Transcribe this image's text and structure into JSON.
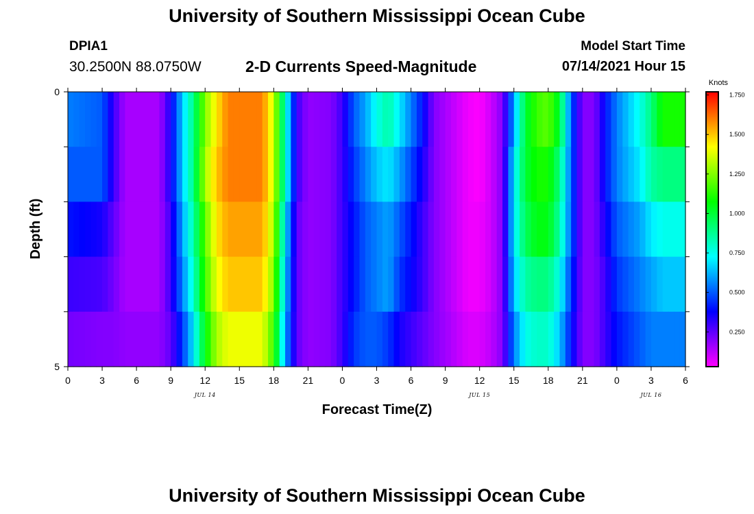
{
  "header": {
    "title": "University of Southern Mississippi Ocean Cube",
    "station_id": "DPIA1",
    "coordinates": "30.2500N  88.0750W",
    "subtitle": "2-D Currents Speed-Magnitude",
    "model_start_label": "Model Start Time",
    "model_start_value": "07/14/2021 Hour 15"
  },
  "footer": {
    "title": "University of Southern Mississippi Ocean Cube"
  },
  "colors": {
    "scale": [
      "#ff00ff",
      "#8000ff",
      "#0000ff",
      "#0080ff",
      "#00ffff",
      "#00ff80",
      "#00ff00",
      "#80ff00",
      "#ffff00",
      "#ff8000",
      "#ff0000"
    ]
  },
  "chart_data": {
    "type": "heatmap",
    "xlabel": "Forecast Time(Z)",
    "ylabel": "Depth (ft)",
    "x_tick_labels": [
      "0",
      "3",
      "6",
      "9",
      "12",
      "15",
      "18",
      "21",
      "0",
      "3",
      "6",
      "9",
      "12",
      "15",
      "18",
      "21",
      "0",
      "3",
      "6"
    ],
    "date_labels": [
      {
        "text": "JUL 14",
        "hour": 12
      },
      {
        "text": "JUL 15",
        "hour": 36
      },
      {
        "text": "JUL 16",
        "hour": 51
      }
    ],
    "y_tick_labels": [
      "0",
      "5"
    ],
    "y_range": [
      0,
      5
    ],
    "x_range": [
      0,
      54
    ],
    "colorbar": {
      "title": "Knots",
      "tick_labels": [
        "1.750",
        "1.500",
        "1.250",
        "1.000",
        "0.750",
        "0.500",
        "0.250"
      ],
      "tick_values": [
        1.75,
        1.5,
        1.25,
        1.0,
        0.75,
        0.5,
        0.25
      ],
      "range": [
        0.03,
        1.77
      ]
    },
    "depth_bins": [
      0,
      1,
      2,
      3,
      4,
      5
    ],
    "depth_layers": [
      {
        "key": [
          [
            0,
            0.55
          ],
          [
            3,
            0.5
          ],
          [
            4,
            0.3
          ],
          [
            5,
            0.15
          ],
          [
            8,
            0.15
          ],
          [
            9,
            0.35
          ],
          [
            10,
            0.65
          ],
          [
            11,
            0.9
          ],
          [
            12,
            1.25
          ],
          [
            13,
            1.45
          ],
          [
            14,
            1.6
          ],
          [
            17,
            1.6
          ],
          [
            18,
            1.35
          ],
          [
            19,
            0.8
          ],
          [
            20,
            0.3
          ],
          [
            21,
            0.18
          ],
          [
            23,
            0.2
          ],
          [
            24,
            0.3
          ],
          [
            25,
            0.5
          ],
          [
            26,
            0.6
          ],
          [
            27,
            0.75
          ],
          [
            28,
            0.85
          ],
          [
            29,
            0.7
          ],
          [
            31,
            0.4
          ],
          [
            32,
            0.2
          ],
          [
            34,
            0.1
          ],
          [
            35,
            0.05
          ],
          [
            36,
            0.03
          ],
          [
            37,
            0.1
          ],
          [
            38,
            0.2
          ],
          [
            39,
            0.6
          ],
          [
            40,
            1.0
          ],
          [
            41,
            1.15
          ],
          [
            42,
            1.2
          ],
          [
            43,
            1.0
          ],
          [
            44,
            0.5
          ],
          [
            45,
            0.2
          ],
          [
            46,
            0.2
          ],
          [
            47,
            0.4
          ],
          [
            48,
            0.55
          ],
          [
            50,
            0.75
          ],
          [
            51,
            0.9
          ],
          [
            52,
            1.1
          ],
          [
            54,
            1.1
          ]
        ]
      },
      {
        "key": [
          [
            0,
            0.5
          ],
          [
            3,
            0.5
          ],
          [
            4,
            0.3
          ],
          [
            5,
            0.15
          ],
          [
            8,
            0.15
          ],
          [
            9,
            0.35
          ],
          [
            10,
            0.65
          ],
          [
            11,
            0.9
          ],
          [
            12,
            1.3
          ],
          [
            13,
            1.5
          ],
          [
            14,
            1.6
          ],
          [
            17,
            1.6
          ],
          [
            18,
            1.35
          ],
          [
            19,
            0.8
          ],
          [
            20,
            0.3
          ],
          [
            21,
            0.18
          ],
          [
            23,
            0.2
          ],
          [
            24,
            0.3
          ],
          [
            25,
            0.45
          ],
          [
            26,
            0.55
          ],
          [
            27,
            0.65
          ],
          [
            28,
            0.7
          ],
          [
            29,
            0.6
          ],
          [
            31,
            0.35
          ],
          [
            32,
            0.2
          ],
          [
            34,
            0.1
          ],
          [
            35,
            0.05
          ],
          [
            36,
            0.03
          ],
          [
            37,
            0.1
          ],
          [
            38,
            0.2
          ],
          [
            39,
            0.7
          ],
          [
            40,
            1.0
          ],
          [
            41,
            1.1
          ],
          [
            42,
            1.1
          ],
          [
            43,
            0.9
          ],
          [
            44,
            0.5
          ],
          [
            45,
            0.2
          ],
          [
            46,
            0.2
          ],
          [
            47,
            0.4
          ],
          [
            48,
            0.55
          ],
          [
            50,
            0.7
          ],
          [
            51,
            0.85
          ],
          [
            52,
            0.9
          ],
          [
            54,
            0.9
          ]
        ]
      },
      {
        "key": [
          [
            0,
            0.4
          ],
          [
            3,
            0.35
          ],
          [
            4,
            0.25
          ],
          [
            5,
            0.15
          ],
          [
            8,
            0.15
          ],
          [
            9,
            0.3
          ],
          [
            10,
            0.6
          ],
          [
            11,
            0.85
          ],
          [
            12,
            1.2
          ],
          [
            13,
            1.45
          ],
          [
            14,
            1.55
          ],
          [
            17,
            1.55
          ],
          [
            18,
            1.3
          ],
          [
            19,
            0.7
          ],
          [
            20,
            0.25
          ],
          [
            21,
            0.18
          ],
          [
            23,
            0.2
          ],
          [
            24,
            0.3
          ],
          [
            25,
            0.4
          ],
          [
            26,
            0.5
          ],
          [
            27,
            0.55
          ],
          [
            28,
            0.6
          ],
          [
            29,
            0.5
          ],
          [
            31,
            0.3
          ],
          [
            32,
            0.2
          ],
          [
            34,
            0.1
          ],
          [
            35,
            0.05
          ],
          [
            36,
            0.05
          ],
          [
            37,
            0.1
          ],
          [
            38,
            0.2
          ],
          [
            39,
            0.7
          ],
          [
            40,
            0.95
          ],
          [
            41,
            1.05
          ],
          [
            42,
            1.05
          ],
          [
            43,
            0.85
          ],
          [
            44,
            0.5
          ],
          [
            45,
            0.2
          ],
          [
            46,
            0.2
          ],
          [
            47,
            0.35
          ],
          [
            48,
            0.5
          ],
          [
            50,
            0.6
          ],
          [
            51,
            0.7
          ],
          [
            52,
            0.75
          ],
          [
            54,
            0.75
          ]
        ]
      },
      {
        "key": [
          [
            0,
            0.3
          ],
          [
            3,
            0.28
          ],
          [
            4,
            0.22
          ],
          [
            5,
            0.15
          ],
          [
            8,
            0.15
          ],
          [
            9,
            0.3
          ],
          [
            10,
            0.55
          ],
          [
            11,
            0.8
          ],
          [
            12,
            1.15
          ],
          [
            13,
            1.4
          ],
          [
            14,
            1.5
          ],
          [
            17,
            1.5
          ],
          [
            18,
            1.25
          ],
          [
            19,
            0.65
          ],
          [
            20,
            0.25
          ],
          [
            21,
            0.18
          ],
          [
            23,
            0.2
          ],
          [
            24,
            0.3
          ],
          [
            25,
            0.4
          ],
          [
            26,
            0.5
          ],
          [
            27,
            0.55
          ],
          [
            28,
            0.6
          ],
          [
            29,
            0.45
          ],
          [
            31,
            0.3
          ],
          [
            32,
            0.2
          ],
          [
            34,
            0.1
          ],
          [
            35,
            0.05
          ],
          [
            36,
            0.05
          ],
          [
            37,
            0.1
          ],
          [
            38,
            0.2
          ],
          [
            39,
            0.65
          ],
          [
            40,
            0.85
          ],
          [
            41,
            0.9
          ],
          [
            42,
            0.9
          ],
          [
            43,
            0.75
          ],
          [
            44,
            0.45
          ],
          [
            45,
            0.2
          ],
          [
            46,
            0.2
          ],
          [
            47,
            0.3
          ],
          [
            48,
            0.45
          ],
          [
            50,
            0.55
          ],
          [
            51,
            0.6
          ],
          [
            52,
            0.65
          ],
          [
            54,
            0.65
          ]
        ]
      },
      {
        "key": [
          [
            0,
            0.22
          ],
          [
            3,
            0.2
          ],
          [
            4,
            0.2
          ],
          [
            5,
            0.18
          ],
          [
            8,
            0.18
          ],
          [
            9,
            0.25
          ],
          [
            10,
            0.45
          ],
          [
            11,
            0.7
          ],
          [
            12,
            1.05
          ],
          [
            13,
            1.3
          ],
          [
            14,
            1.4
          ],
          [
            17,
            1.4
          ],
          [
            18,
            1.15
          ],
          [
            19,
            0.6
          ],
          [
            20,
            0.25
          ],
          [
            21,
            0.18
          ],
          [
            23,
            0.2
          ],
          [
            24,
            0.3
          ],
          [
            25,
            0.45
          ],
          [
            26,
            0.5
          ],
          [
            27,
            0.5
          ],
          [
            28,
            0.45
          ],
          [
            29,
            0.35
          ],
          [
            31,
            0.25
          ],
          [
            32,
            0.2
          ],
          [
            34,
            0.12
          ],
          [
            35,
            0.08
          ],
          [
            36,
            0.08
          ],
          [
            37,
            0.12
          ],
          [
            38,
            0.2
          ],
          [
            39,
            0.55
          ],
          [
            40,
            0.75
          ],
          [
            41,
            0.8
          ],
          [
            42,
            0.8
          ],
          [
            43,
            0.65
          ],
          [
            44,
            0.4
          ],
          [
            45,
            0.2
          ],
          [
            46,
            0.2
          ],
          [
            47,
            0.3
          ],
          [
            48,
            0.4
          ],
          [
            50,
            0.5
          ],
          [
            51,
            0.55
          ],
          [
            52,
            0.55
          ],
          [
            54,
            0.55
          ]
        ]
      },
      {
        "key": [
          [
            0,
            0.2
          ],
          [
            1,
            0.15
          ],
          [
            3,
            0.12
          ],
          [
            4,
            0.2
          ],
          [
            5,
            0.25
          ],
          [
            8,
            0.25
          ],
          [
            9,
            0.3
          ],
          [
            10,
            0.45
          ],
          [
            11,
            0.7
          ],
          [
            12,
            0.95
          ],
          [
            13,
            1.2
          ],
          [
            14,
            1.25
          ],
          [
            17,
            1.25
          ],
          [
            18,
            1.0
          ],
          [
            19,
            0.55
          ],
          [
            20,
            0.3
          ],
          [
            21,
            0.2
          ],
          [
            23,
            0.2
          ],
          [
            24,
            0.3
          ],
          [
            25,
            0.4
          ],
          [
            26,
            0.45
          ],
          [
            27,
            0.45
          ],
          [
            28,
            0.4
          ],
          [
            29,
            0.3
          ],
          [
            31,
            0.2
          ],
          [
            32,
            0.2
          ],
          [
            34,
            0.12
          ],
          [
            35,
            0.1
          ],
          [
            36,
            0.1
          ],
          [
            37,
            0.12
          ],
          [
            38,
            0.2
          ],
          [
            39,
            0.5
          ],
          [
            40,
            0.65
          ],
          [
            41,
            0.7
          ],
          [
            42,
            0.65
          ],
          [
            43,
            0.55
          ],
          [
            44,
            0.4
          ],
          [
            45,
            0.2
          ],
          [
            46,
            0.2
          ],
          [
            47,
            0.3
          ],
          [
            48,
            0.4
          ],
          [
            50,
            0.45
          ],
          [
            51,
            0.45
          ],
          [
            52,
            0.45
          ],
          [
            54,
            0.45
          ]
        ]
      }
    ]
  }
}
